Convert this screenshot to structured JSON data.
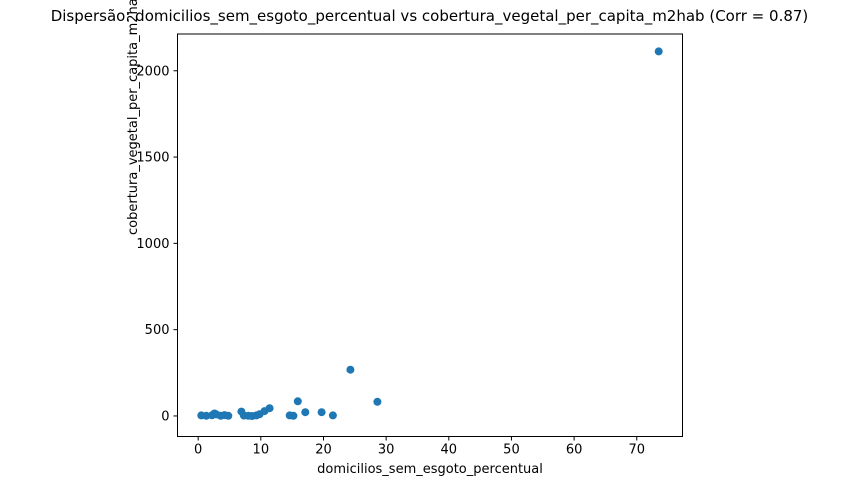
{
  "chart_data": {
    "type": "scatter",
    "title": "Dispersão: domicilios_sem_esgoto_percentual vs cobertura_vegetal_per_capita_m2hab (Corr = 0.87)",
    "xlabel": "domicilios_sem_esgoto_percentual",
    "ylabel": "cobertura_vegetal_per_capita_m2hab",
    "correlation": 0.87,
    "xlim": [
      -3.3,
      77.3
    ],
    "ylim": [
      -119,
      2213
    ],
    "xticks": [
      0,
      10,
      20,
      30,
      40,
      50,
      60,
      70
    ],
    "yticks": [
      0,
      500,
      1000,
      1500,
      2000
    ],
    "grid": false,
    "legend": "none",
    "marker_color": "#1f77b4",
    "spine_color": "#000000",
    "points": [
      [
        0.5,
        3
      ],
      [
        1.3,
        1
      ],
      [
        2.2,
        4
      ],
      [
        2.6,
        14
      ],
      [
        2.9,
        9
      ],
      [
        3.6,
        1
      ],
      [
        4.2,
        5
      ],
      [
        4.8,
        1
      ],
      [
        6.9,
        25
      ],
      [
        7.3,
        2
      ],
      [
        8.0,
        1
      ],
      [
        8.6,
        0
      ],
      [
        9.3,
        3
      ],
      [
        9.8,
        10
      ],
      [
        10.6,
        28
      ],
      [
        11.4,
        45
      ],
      [
        14.6,
        3
      ],
      [
        15.2,
        1
      ],
      [
        15.9,
        85
      ],
      [
        17.1,
        22
      ],
      [
        19.7,
        22
      ],
      [
        21.5,
        3
      ],
      [
        24.3,
        268
      ],
      [
        28.6,
        82
      ],
      [
        73.5,
        2112
      ]
    ]
  }
}
